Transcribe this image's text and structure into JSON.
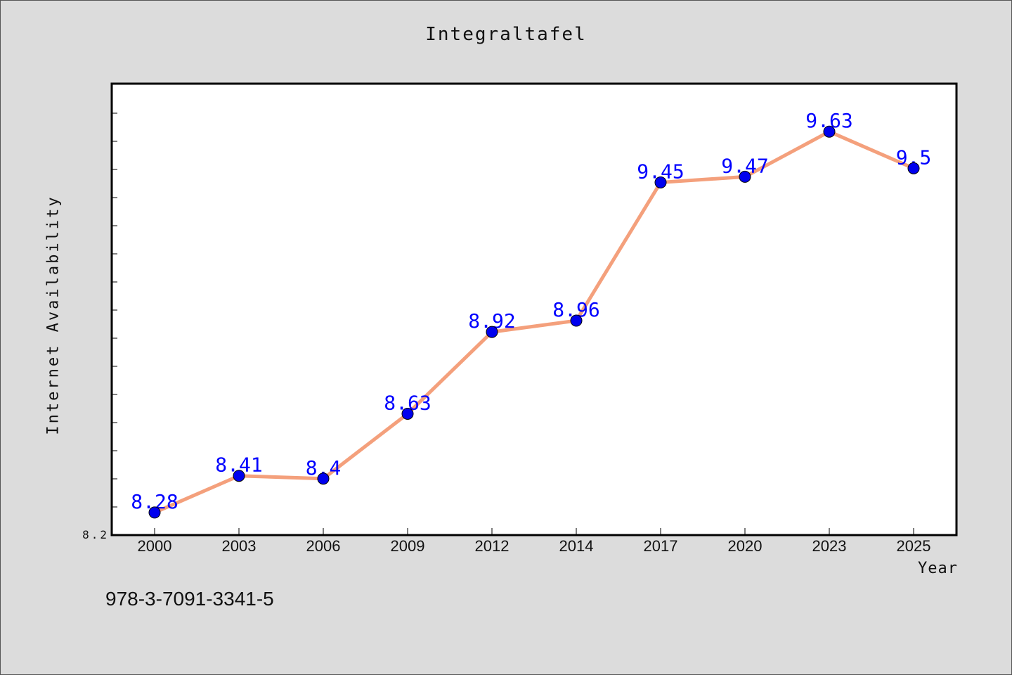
{
  "chart_data": {
    "type": "line",
    "title": "Integraltafel",
    "xlabel": "Year",
    "ylabel": "Internet Availability",
    "categories": [
      "2000",
      "2003",
      "2006",
      "2009",
      "2012",
      "2014",
      "2017",
      "2020",
      "2023",
      "2025"
    ],
    "series": [
      {
        "values": [
          8.28,
          8.41,
          8.4,
          8.63,
          8.92,
          8.96,
          9.45,
          9.47,
          9.63,
          9.5
        ]
      }
    ],
    "data_labels": [
      "8.28",
      "8.41",
      "8.4",
      "8.63",
      "8.92",
      "8.96",
      "9.45",
      "9.47",
      "9.63",
      "9.5"
    ],
    "ylim": [
      8.2,
      9.8
    ],
    "y_tick_labels": [
      "8.2"
    ],
    "grid": false,
    "colors": {
      "line": "#f4a07c",
      "marker": "#0000ee",
      "data_label": "#0000ff",
      "plot_bg": "#ffffff",
      "figure_bg": "#dcdcdc"
    }
  },
  "footer": {
    "isbn": "978-3-7091-3341-5"
  }
}
